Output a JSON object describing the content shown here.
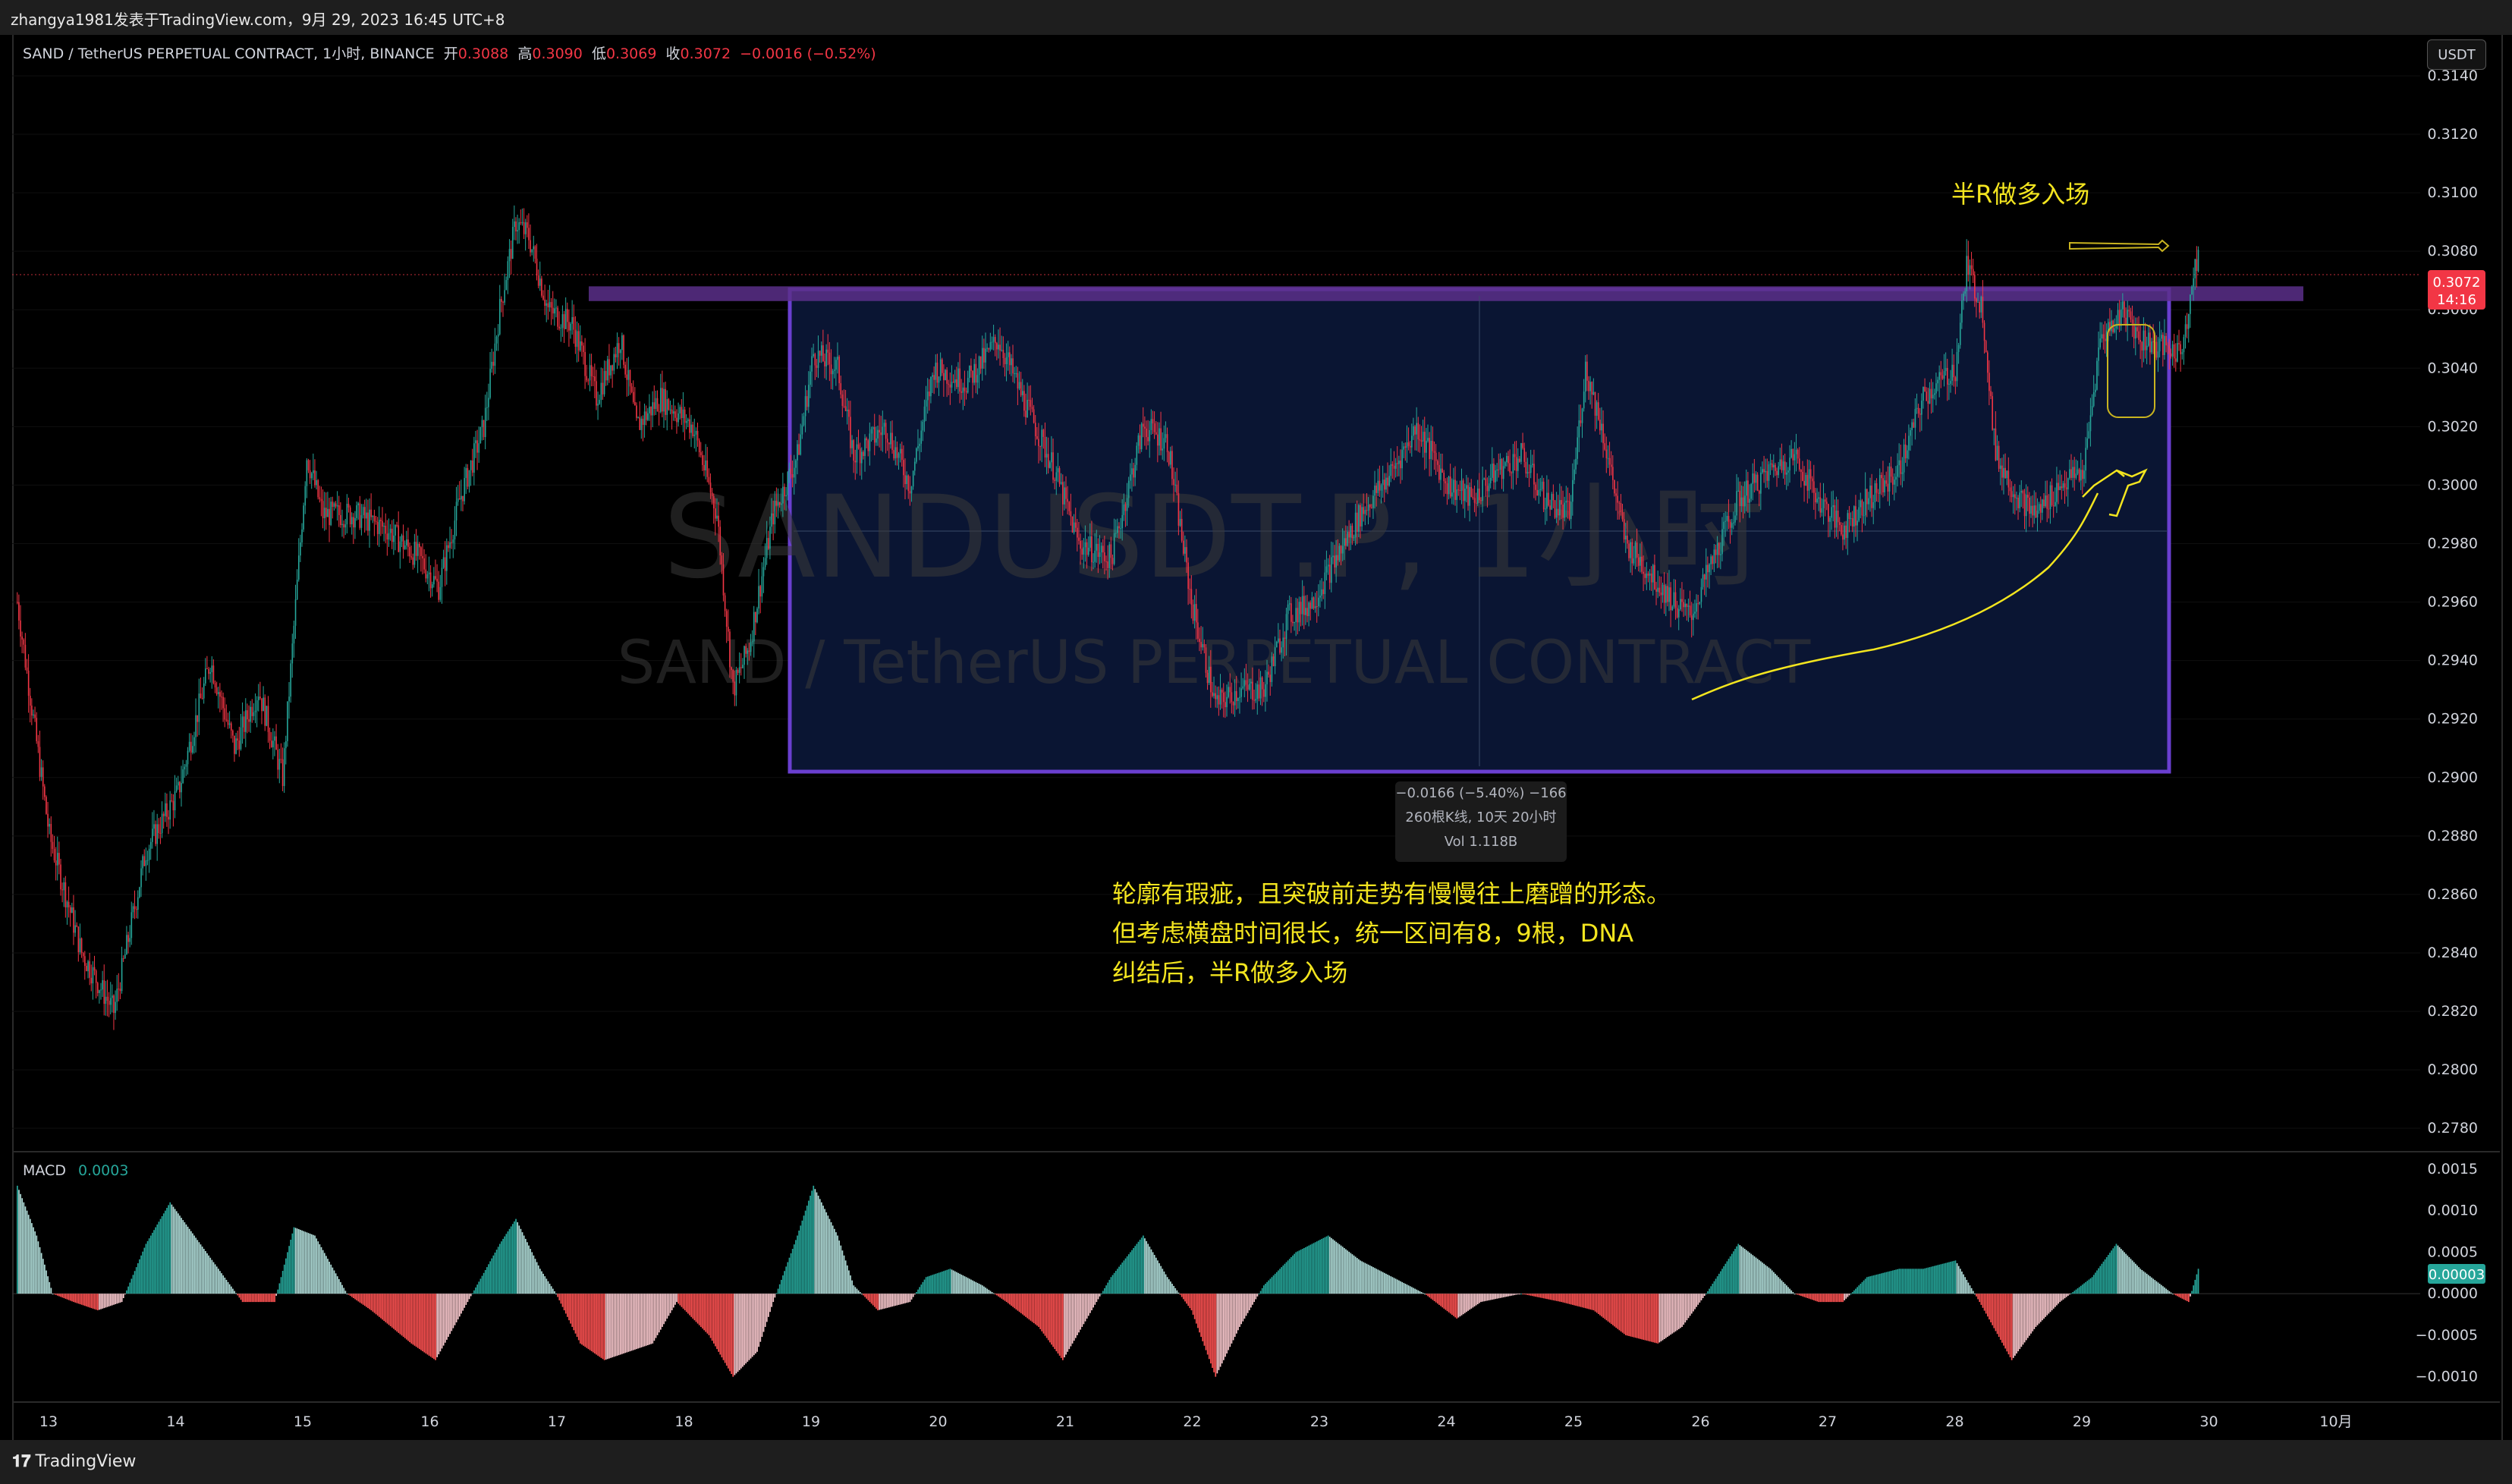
{
  "header": {
    "author_line": "zhangya1981发表于TradingView.com，9月 29, 2023 16:45 UTC+8"
  },
  "legend": {
    "symbol": "SAND / TetherUS PERPETUAL CONTRACT, 1小时, BINANCE",
    "open_label": "开",
    "open": "0.3088",
    "high_label": "高",
    "high": "0.3090",
    "low_label": "低",
    "low": "0.3069",
    "close_label": "收",
    "close": "0.3072",
    "change": "−0.0016 (−0.52%)"
  },
  "currency_button": "USDT",
  "watermark": {
    "line1": "SANDUSDT.P, 1小时",
    "line2": "SAND / TetherUS PERPETUAL CONTRACT"
  },
  "price_badge": {
    "price": "0.3072",
    "countdown": "14:16",
    "color": "#f23645"
  },
  "range_tooltip": {
    "line1": "−0.0166 (−5.40%) −166",
    "line2": "260根K线, 10天 20小时",
    "line3": "Vol 1.118B"
  },
  "annotations": {
    "entry_label": "半R做多入场",
    "note_lines": [
      "轮廓有瑕疵，且突破前走势有慢慢往上磨蹭的形态。",
      "但考虑横盘时间很长，统一区间有8，9根，DNA",
      "纠结后，半R做多入场"
    ]
  },
  "macd": {
    "label": "MACD",
    "value": "0.0003",
    "badge": "0.00003",
    "badge_color": "#26a69a"
  },
  "footer": {
    "brand": "TradingView"
  },
  "colors": {
    "up": "#26a69a",
    "down": "#f23645",
    "box_border": "#6a3fd0",
    "box_fill": "#0a1533",
    "annotation": "#f3e51f"
  },
  "chart_data": {
    "type": "candlestick",
    "price_axis": {
      "ticks": [
        "0.3140",
        "0.3120",
        "0.3100",
        "0.3080",
        "0.3060",
        "0.3040",
        "0.3020",
        "0.3000",
        "0.2980",
        "0.2960",
        "0.2940",
        "0.2920",
        "0.2900",
        "0.2880",
        "0.2860",
        "0.2840",
        "0.2820",
        "0.2800",
        "0.2780"
      ],
      "range": [
        0.2772,
        0.3154
      ]
    },
    "macd_axis": {
      "ticks": [
        "0.0015",
        "0.0010",
        "0.0005",
        "0.0000",
        "−0.0005",
        "−0.0010"
      ],
      "range": [
        -0.00125,
        0.0016
      ]
    },
    "time_axis": {
      "labels": [
        "13",
        "14",
        "15",
        "16",
        "17",
        "18",
        "19",
        "20",
        "21",
        "22",
        "23",
        "24",
        "25",
        "26",
        "27",
        "28",
        "29",
        "30",
        "10月"
      ]
    },
    "range_box": {
      "price_top": 0.3067,
      "price_bottom": 0.2902,
      "from": "18",
      "to": "29"
    },
    "resistance_zone": {
      "price_top": 0.3068,
      "price_bottom": 0.3064
    },
    "waypoints": [
      [
        0,
        0.296
      ],
      [
        20,
        0.288
      ],
      [
        40,
        0.284
      ],
      [
        60,
        0.282
      ],
      [
        80,
        0.2875
      ],
      [
        100,
        0.2895
      ],
      [
        120,
        0.294
      ],
      [
        135,
        0.291
      ],
      [
        150,
        0.293
      ],
      [
        165,
        0.29
      ],
      [
        180,
        0.301
      ],
      [
        190,
        0.299
      ],
      [
        210,
        0.299
      ],
      [
        230,
        0.2985
      ],
      [
        250,
        0.2975
      ],
      [
        262,
        0.2965
      ],
      [
        275,
        0.2995
      ],
      [
        290,
        0.302
      ],
      [
        300,
        0.306
      ],
      [
        310,
        0.309
      ],
      [
        318,
        0.3085
      ],
      [
        330,
        0.306
      ],
      [
        345,
        0.3055
      ],
      [
        360,
        0.303
      ],
      [
        375,
        0.305
      ],
      [
        385,
        0.302
      ],
      [
        400,
        0.303
      ],
      [
        420,
        0.302
      ],
      [
        435,
        0.299
      ],
      [
        445,
        0.293
      ],
      [
        455,
        0.2945
      ],
      [
        470,
        0.299
      ],
      [
        485,
        0.301
      ],
      [
        495,
        0.3045
      ],
      [
        510,
        0.304
      ],
      [
        520,
        0.301
      ],
      [
        540,
        0.302
      ],
      [
        555,
        0.3
      ],
      [
        570,
        0.304
      ],
      [
        590,
        0.3035
      ],
      [
        610,
        0.305
      ],
      [
        625,
        0.303
      ],
      [
        645,
        0.3005
      ],
      [
        660,
        0.298
      ],
      [
        680,
        0.2975
      ],
      [
        700,
        0.302
      ],
      [
        715,
        0.3015
      ],
      [
        730,
        0.296
      ],
      [
        745,
        0.2925
      ],
      [
        760,
        0.293
      ],
      [
        775,
        0.293
      ],
      [
        790,
        0.2955
      ],
      [
        805,
        0.296
      ],
      [
        820,
        0.2975
      ],
      [
        835,
        0.299
      ],
      [
        855,
        0.3005
      ],
      [
        870,
        0.302
      ],
      [
        890,
        0.3
      ],
      [
        905,
        0.2995
      ],
      [
        920,
        0.3005
      ],
      [
        935,
        0.301
      ],
      [
        950,
        0.2995
      ],
      [
        965,
        0.299
      ],
      [
        975,
        0.304
      ],
      [
        985,
        0.302
      ],
      [
        1000,
        0.298
      ],
      [
        1015,
        0.297
      ],
      [
        1030,
        0.296
      ],
      [
        1040,
        0.2955
      ],
      [
        1055,
        0.2975
      ],
      [
        1070,
        0.2995
      ],
      [
        1090,
        0.3005
      ],
      [
        1105,
        0.301
      ],
      [
        1120,
        0.2995
      ],
      [
        1135,
        0.2985
      ],
      [
        1150,
        0.2995
      ],
      [
        1170,
        0.3005
      ],
      [
        1185,
        0.303
      ],
      [
        1205,
        0.304
      ],
      [
        1212,
        0.3075
      ],
      [
        1222,
        0.306
      ],
      [
        1230,
        0.301
      ],
      [
        1245,
        0.2995
      ],
      [
        1255,
        0.299
      ],
      [
        1270,
        0.3
      ],
      [
        1285,
        0.3005
      ],
      [
        1295,
        0.305
      ],
      [
        1310,
        0.306
      ],
      [
        1320,
        0.305
      ],
      [
        1345,
        0.3045
      ],
      [
        1356,
        0.308
      ]
    ],
    "macd_waypoints": [
      [
        0,
        0.0013
      ],
      [
        12,
        0.0007
      ],
      [
        22,
        0.0
      ],
      [
        35,
        -0.0001
      ],
      [
        50,
        -0.0002
      ],
      [
        65,
        -0.0001
      ],
      [
        80,
        0.0006
      ],
      [
        95,
        0.0011
      ],
      [
        110,
        0.0007
      ],
      [
        125,
        0.0003
      ],
      [
        140,
        -0.0001
      ],
      [
        160,
        -0.0001
      ],
      [
        172,
        0.0008
      ],
      [
        185,
        0.0007
      ],
      [
        205,
        0.0
      ],
      [
        220,
        -0.0002
      ],
      [
        245,
        -0.0006
      ],
      [
        260,
        -0.0008
      ],
      [
        280,
        -0.0001
      ],
      [
        300,
        0.0006
      ],
      [
        310,
        0.0009
      ],
      [
        325,
        0.0003
      ],
      [
        335,
        0.0
      ],
      [
        350,
        -0.0006
      ],
      [
        365,
        -0.0008
      ],
      [
        380,
        -0.0007
      ],
      [
        395,
        -0.0006
      ],
      [
        410,
        -0.0001
      ],
      [
        430,
        -0.0005
      ],
      [
        445,
        -0.001
      ],
      [
        460,
        -0.0007
      ],
      [
        470,
        -0.0001
      ],
      [
        485,
        0.0007
      ],
      [
        495,
        0.0013
      ],
      [
        510,
        0.0007
      ],
      [
        520,
        0.0001
      ],
      [
        535,
        -0.0002
      ],
      [
        555,
        -0.0001
      ],
      [
        565,
        0.0002
      ],
      [
        580,
        0.0003
      ],
      [
        600,
        0.0001
      ],
      [
        615,
        -0.0001
      ],
      [
        635,
        -0.0004
      ],
      [
        650,
        -0.0008
      ],
      [
        665,
        -0.0003
      ],
      [
        680,
        0.0002
      ],
      [
        700,
        0.0007
      ],
      [
        715,
        0.0002
      ],
      [
        730,
        -0.0002
      ],
      [
        745,
        -0.001
      ],
      [
        760,
        -0.0004
      ],
      [
        775,
        0.0001
      ],
      [
        795,
        0.0005
      ],
      [
        815,
        0.0007
      ],
      [
        835,
        0.0004
      ],
      [
        855,
        0.0002
      ],
      [
        875,
        0.0
      ],
      [
        895,
        -0.0003
      ],
      [
        910,
        -0.0001
      ],
      [
        935,
        0.0
      ],
      [
        960,
        -0.0001
      ],
      [
        980,
        -0.0002
      ],
      [
        1000,
        -0.0005
      ],
      [
        1020,
        -0.0006
      ],
      [
        1035,
        -0.0004
      ],
      [
        1050,
        0.0
      ],
      [
        1070,
        0.0006
      ],
      [
        1090,
        0.0003
      ],
      [
        1105,
        0.0
      ],
      [
        1120,
        -0.0001
      ],
      [
        1135,
        -0.0001
      ],
      [
        1150,
        0.0002
      ],
      [
        1170,
        0.0003
      ],
      [
        1185,
        0.0003
      ],
      [
        1205,
        0.0004
      ],
      [
        1220,
        -0.0001
      ],
      [
        1240,
        -0.0008
      ],
      [
        1255,
        -0.0004
      ],
      [
        1270,
        -0.0001
      ],
      [
        1290,
        0.0002
      ],
      [
        1305,
        0.0006
      ],
      [
        1320,
        0.0003
      ],
      [
        1340,
        0.0
      ],
      [
        1350,
        -0.0001
      ],
      [
        1356,
        0.0003
      ]
    ]
  }
}
